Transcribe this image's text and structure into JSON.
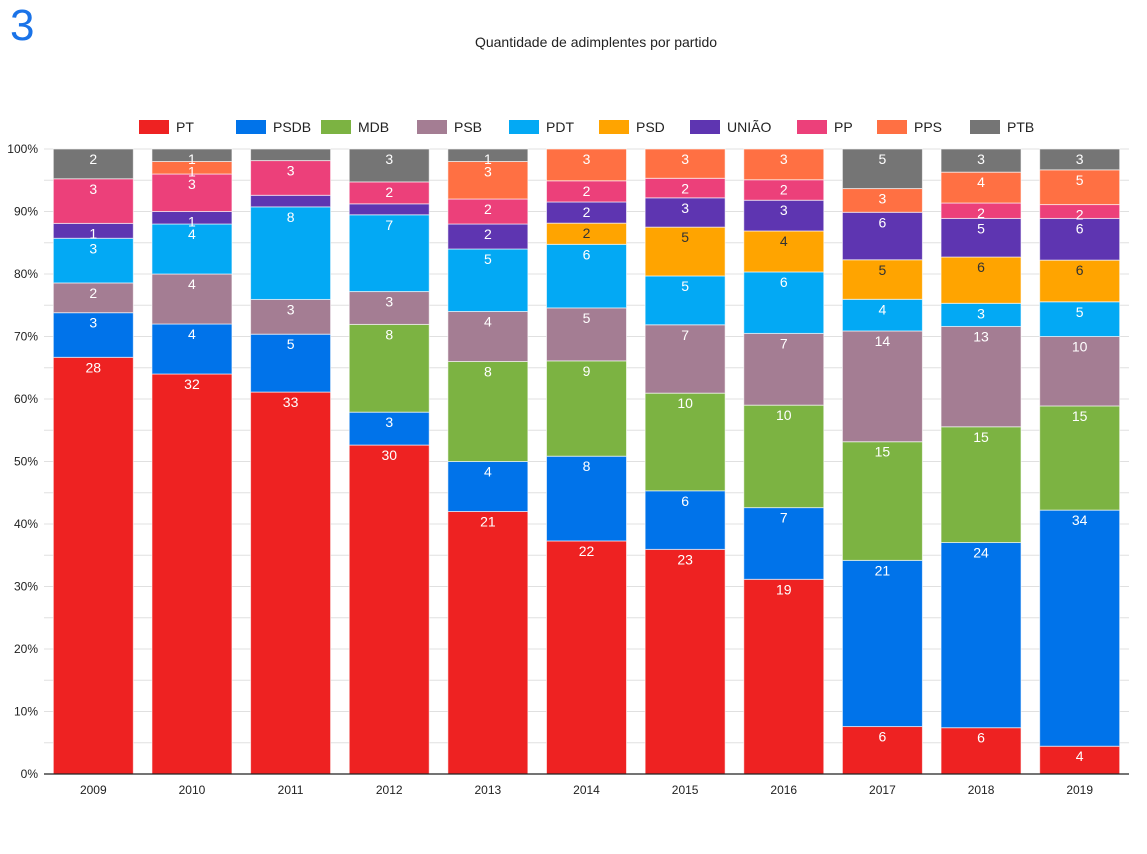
{
  "page_number": "3",
  "chart_data": {
    "type": "bar",
    "stacked": "percent",
    "title": "Quantidade de adimplentes por partido",
    "xlabel": "",
    "ylabel": "",
    "ylim": [
      0,
      100
    ],
    "y_ticks": [
      "0%",
      "10%",
      "20%",
      "30%",
      "40%",
      "50%",
      "60%",
      "70%",
      "80%",
      "90%",
      "100%"
    ],
    "grid": true,
    "legend_position": "top",
    "categories": [
      "2009",
      "2010",
      "2011",
      "2012",
      "2013",
      "2014",
      "2015",
      "2016",
      "2017",
      "2018",
      "2019"
    ],
    "series": [
      {
        "name": "PT",
        "color": "#ee2222",
        "label_color": "#ffffff",
        "values": [
          28,
          32,
          33,
          30,
          21,
          22,
          23,
          19,
          6,
          6,
          4
        ]
      },
      {
        "name": "PSDB",
        "color": "#0073ea",
        "label_color": "#ffffff",
        "values": [
          3,
          4,
          5,
          3,
          4,
          8,
          6,
          7,
          21,
          24,
          34
        ]
      },
      {
        "name": "MDB",
        "color": "#7cb342",
        "label_color": "#ffffff",
        "values": [
          0,
          0,
          0,
          8,
          8,
          9,
          10,
          10,
          15,
          15,
          15
        ]
      },
      {
        "name": "PSB",
        "color": "#a47d93",
        "label_color": "#ffffff",
        "values": [
          2,
          4,
          3,
          3,
          4,
          5,
          7,
          7,
          14,
          13,
          10
        ]
      },
      {
        "name": "PDT",
        "color": "#03a9f4",
        "label_color": "#ffffff",
        "values": [
          3,
          4,
          8,
          7,
          5,
          6,
          5,
          6,
          4,
          3,
          5
        ]
      },
      {
        "name": "PSD",
        "color": "#ffa400",
        "label_color": "#333333",
        "values": [
          0,
          0,
          0,
          0,
          0,
          2,
          5,
          4,
          5,
          6,
          6
        ]
      },
      {
        "name": "UNIÃO",
        "color": "#5e35b1",
        "label_color": "#ffffff",
        "values": [
          1,
          1,
          1,
          1,
          2,
          2,
          3,
          3,
          6,
          5,
          6
        ]
      },
      {
        "name": "PP",
        "color": "#ec407a",
        "label_color": "#ffffff",
        "values": [
          3,
          3,
          3,
          2,
          2,
          2,
          2,
          2,
          0,
          2,
          2
        ]
      },
      {
        "name": "PPS",
        "color": "#ff7043",
        "label_color": "#ffffff",
        "values": [
          0,
          1,
          0,
          0,
          3,
          3,
          3,
          3,
          3,
          4,
          5
        ]
      },
      {
        "name": "PTB",
        "color": "#757575",
        "label_color": "#ffffff",
        "values": [
          2,
          1,
          1,
          3,
          1,
          0,
          0,
          0,
          5,
          3,
          3
        ]
      }
    ]
  }
}
